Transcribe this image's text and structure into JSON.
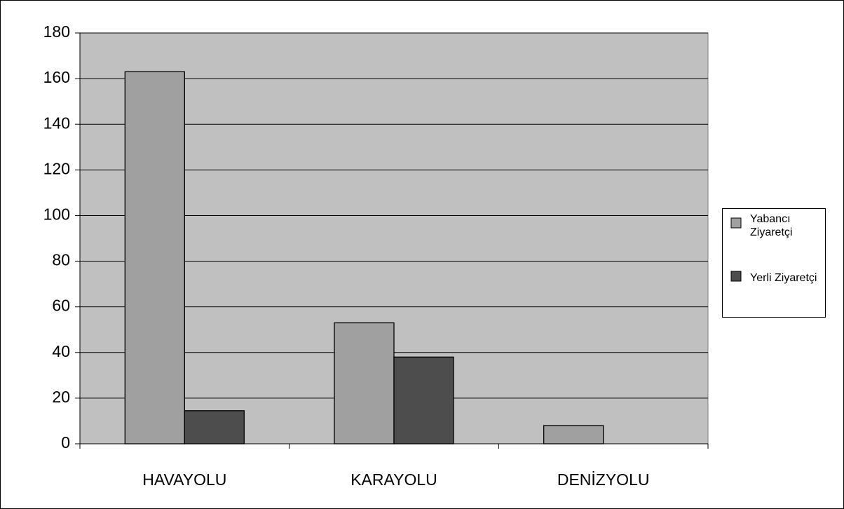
{
  "chart_data": {
    "type": "bar",
    "categories": [
      "HAVAYOLU",
      "KARAYOLU",
      "DENİZYOLU"
    ],
    "series": [
      {
        "name": "Yabancı Ziyaretçi",
        "color": "#a0a0a0",
        "values": [
          163,
          53,
          8
        ]
      },
      {
        "name": "Yerli Ziyaretçi",
        "color": "#4d4d4d",
        "values": [
          14.5,
          38,
          0
        ]
      }
    ],
    "ylim": [
      0,
      180
    ],
    "yticks": [
      0,
      20,
      40,
      60,
      80,
      100,
      120,
      140,
      160,
      180
    ],
    "grid": true,
    "plot_background": "#c0c0c0",
    "legend": "right"
  }
}
